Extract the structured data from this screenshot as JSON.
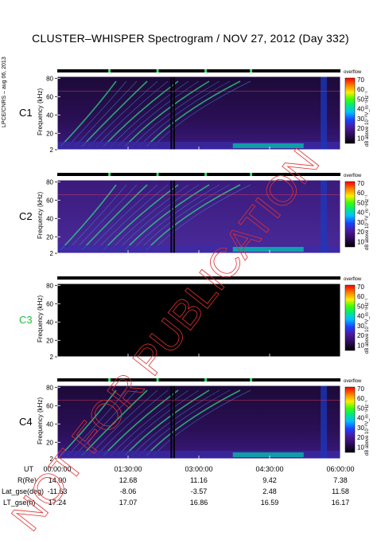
{
  "title": "CLUSTER–WHISPER Spectrogram / NOV 27, 2012 (Day 332)",
  "side_label": "LPCE/CNRS – aug 06, 2013",
  "watermark": "NOT FOR PUBLICATION",
  "colors": {
    "background": "#000000",
    "frame": "#ffffff",
    "accent_green": "#33dd66"
  },
  "chart_data": {
    "type": "heatmap",
    "panels": [
      {
        "name": "C1",
        "label_color": "#000000",
        "empty": false
      },
      {
        "name": "C2",
        "label_color": "#000000",
        "empty": false
      },
      {
        "name": "C3",
        "label_color": "#22bb44",
        "empty": true
      },
      {
        "name": "C4",
        "label_color": "#000000",
        "empty": false
      }
    ],
    "ylabel": "Frequency (kHz)",
    "y_ticks": [
      "2",
      "20",
      "40",
      "60",
      "80"
    ],
    "ylim": [
      2,
      82
    ],
    "colorbar": {
      "label": "dB above 10⁻⁸V_m⁻¹Hz⁻¹",
      "ticks": [
        "10",
        "20",
        "30",
        "40",
        "50",
        "60",
        "70"
      ],
      "range": [
        5,
        72
      ],
      "overflow_label": "overflow"
    },
    "x_ticks": [
      "00:00:00",
      "01:30:00",
      "03:00:00",
      "04:30:00",
      "06:00:00"
    ],
    "footer": {
      "rows": [
        {
          "label": "UT",
          "values": [
            "00:00:00",
            "01:30:00",
            "03:00:00",
            "04:30:00",
            "06:00:00"
          ]
        },
        {
          "label": "R(Re)",
          "values": [
            "14.00",
            "12.68",
            "11.16",
            "9.42",
            "7.38"
          ]
        },
        {
          "label": "Lat_gse(deg)",
          "values": [
            "-11.63",
            "-8.06",
            "-3.57",
            "2.48",
            "11.58"
          ]
        },
        {
          "label": "LT_gse(h)",
          "values": [
            "17.24",
            "17.07",
            "16.86",
            "16.59",
            "16.17"
          ]
        }
      ]
    }
  }
}
